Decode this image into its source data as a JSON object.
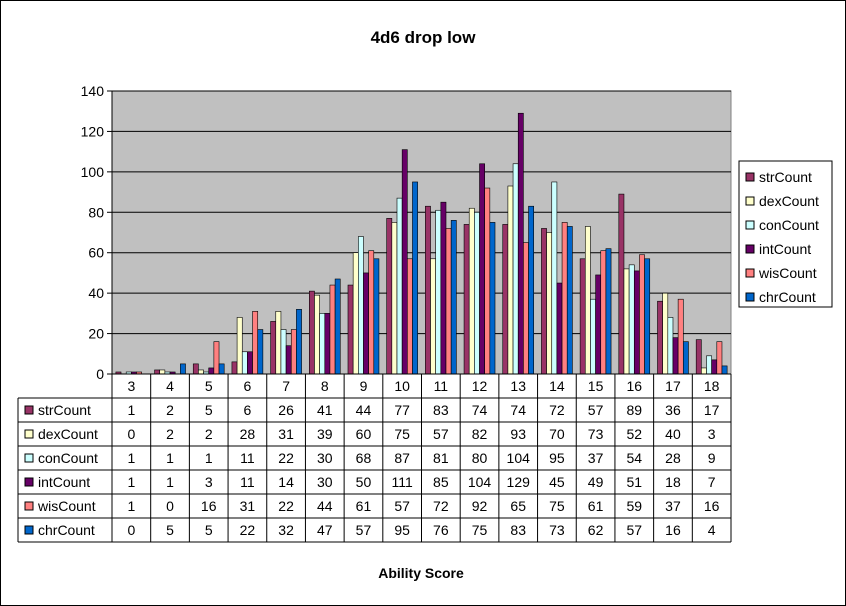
{
  "chart_data": {
    "type": "bar",
    "title": "4d6 drop low",
    "xlabel": "Ability Score",
    "ylabel": "",
    "ylim": [
      0,
      140
    ],
    "yticks": [
      0,
      20,
      40,
      60,
      80,
      100,
      120,
      140
    ],
    "grid": true,
    "legend": "right",
    "categories": [
      "3",
      "4",
      "5",
      "6",
      "7",
      "8",
      "9",
      "10",
      "11",
      "12",
      "13",
      "14",
      "15",
      "16",
      "17",
      "18"
    ],
    "series": [
      {
        "name": "strCount",
        "color": "#993366",
        "values": [
          1,
          2,
          5,
          6,
          26,
          41,
          44,
          77,
          83,
          74,
          74,
          72,
          57,
          89,
          36,
          17
        ]
      },
      {
        "name": "dexCount",
        "color": "#FFFFCC",
        "values": [
          0,
          2,
          2,
          28,
          31,
          39,
          60,
          75,
          57,
          82,
          93,
          70,
          73,
          52,
          40,
          3
        ]
      },
      {
        "name": "conCount",
        "color": "#CCFFFF",
        "values": [
          1,
          1,
          1,
          11,
          22,
          30,
          68,
          87,
          81,
          80,
          104,
          95,
          37,
          54,
          28,
          9
        ]
      },
      {
        "name": "intCount",
        "color": "#660066",
        "values": [
          1,
          1,
          3,
          11,
          14,
          30,
          50,
          111,
          85,
          104,
          129,
          45,
          49,
          51,
          18,
          7
        ]
      },
      {
        "name": "wisCount",
        "color": "#FF8080",
        "values": [
          1,
          0,
          16,
          31,
          22,
          44,
          61,
          57,
          72,
          92,
          65,
          75,
          61,
          59,
          37,
          16
        ]
      },
      {
        "name": "chrCount",
        "color": "#0066CC",
        "values": [
          0,
          5,
          5,
          22,
          32,
          47,
          57,
          95,
          76,
          75,
          83,
          73,
          62,
          57,
          16,
          4
        ]
      }
    ],
    "plot_background": "#C0C0C0"
  }
}
